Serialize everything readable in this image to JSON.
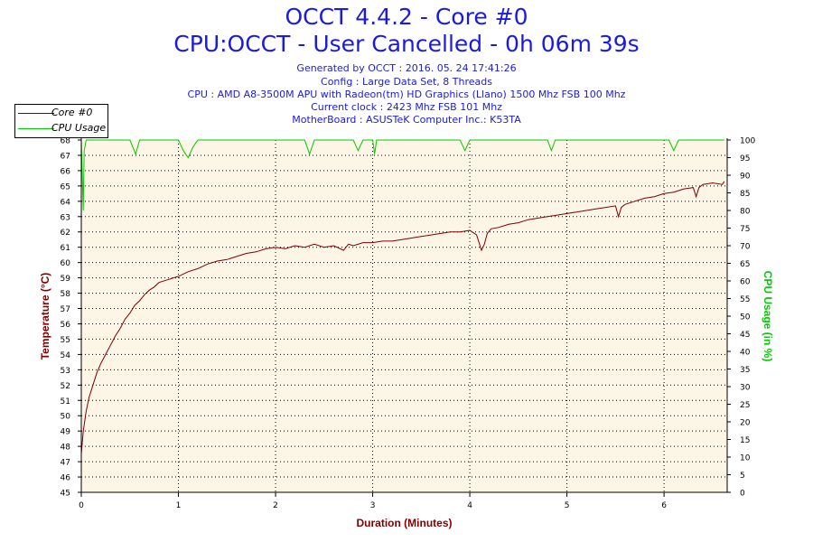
{
  "header": {
    "title": "OCCT 4.4.2 - Core #0",
    "subtitle": "CPU:OCCT - User Cancelled - 0h 06m 39s",
    "info_lines": [
      "Generated by OCCT : 2016. 05. 24 17:41:26",
      "Config : Large Data Set, 8 Threads",
      "CPU : AMD A8-3500M APU with Radeon(tm) HD Graphics (Llano) 1500 Mhz FSB 100 Mhz",
      "Current clock : 2423 Mhz FSB 101 Mhz",
      "MotherBoard : ASUSTeK Computer Inc.: K53TA"
    ]
  },
  "legend": {
    "items": [
      {
        "label": "Core #0",
        "color": "#800000"
      },
      {
        "label": "CPU Usage",
        "color": "#00cc00"
      }
    ]
  },
  "chart_data": {
    "type": "line",
    "xlabel": "Duration (Minutes)",
    "ylabel": "Temperature (°C)",
    "y2label": "CPU Usage (in %)",
    "xlim": [
      0,
      6.65
    ],
    "ylim": [
      45,
      68
    ],
    "y2lim": [
      0,
      100
    ],
    "x_ticks": [
      "0",
      "1",
      "2",
      "3",
      "4",
      "5",
      "6"
    ],
    "y_ticks": [
      "45",
      "46",
      "47",
      "48",
      "49",
      "50",
      "51",
      "52",
      "53",
      "54",
      "55",
      "56",
      "57",
      "58",
      "59",
      "60",
      "61",
      "62",
      "63",
      "64",
      "65",
      "66",
      "67",
      "68"
    ],
    "y2_ticks": [
      "0",
      "5",
      "10",
      "15",
      "20",
      "25",
      "30",
      "35",
      "40",
      "45",
      "50",
      "55",
      "60",
      "65",
      "70",
      "75",
      "80",
      "85",
      "90",
      "95",
      "100"
    ],
    "grid": true,
    "legend_position": "top-left",
    "colors": {
      "axis_left": "#800000",
      "axis_right": "#00cc00",
      "title": "#1a1ae6",
      "plot_bg": "#fdf5e6"
    },
    "series": [
      {
        "name": "Core #0",
        "axis": "left",
        "color": "#800000",
        "x": [
          0,
          0.02,
          0.05,
          0.08,
          0.12,
          0.16,
          0.2,
          0.25,
          0.3,
          0.35,
          0.4,
          0.45,
          0.5,
          0.55,
          0.6,
          0.65,
          0.7,
          0.75,
          0.8,
          0.9,
          1.0,
          1.1,
          1.2,
          1.3,
          1.4,
          1.5,
          1.6,
          1.7,
          1.8,
          1.9,
          2.0,
          2.1,
          2.2,
          2.3,
          2.4,
          2.5,
          2.6,
          2.7,
          2.75,
          2.8,
          2.9,
          3.0,
          3.1,
          3.2,
          3.3,
          3.4,
          3.5,
          3.6,
          3.7,
          3.8,
          3.9,
          4.0,
          4.07,
          4.12,
          4.15,
          4.18,
          4.22,
          4.3,
          4.4,
          4.5,
          4.6,
          4.7,
          4.8,
          4.9,
          5.0,
          5.1,
          5.2,
          5.3,
          5.4,
          5.5,
          5.53,
          5.56,
          5.6,
          5.7,
          5.8,
          5.9,
          6.0,
          6.1,
          6.2,
          6.3,
          6.33,
          6.36,
          6.4,
          6.5,
          6.6,
          6.62
        ],
        "values": [
          47.5,
          49.0,
          50.3,
          51.2,
          52.0,
          52.8,
          53.4,
          54.0,
          54.6,
          55.2,
          55.7,
          56.3,
          56.7,
          57.2,
          57.5,
          57.9,
          58.2,
          58.4,
          58.7,
          58.9,
          59.1,
          59.4,
          59.6,
          59.9,
          60.1,
          60.2,
          60.4,
          60.6,
          60.7,
          60.9,
          61.0,
          60.9,
          61.1,
          61.0,
          61.2,
          61.0,
          61.1,
          60.8,
          61.2,
          61.1,
          61.3,
          61.3,
          61.4,
          61.4,
          61.5,
          61.6,
          61.7,
          61.8,
          61.9,
          62.0,
          62.0,
          62.1,
          61.8,
          60.8,
          61.2,
          61.9,
          62.2,
          62.3,
          62.5,
          62.6,
          62.8,
          62.9,
          63.0,
          63.1,
          63.2,
          63.3,
          63.4,
          63.5,
          63.6,
          63.7,
          63.0,
          63.6,
          63.8,
          64.0,
          64.2,
          64.3,
          64.5,
          64.6,
          64.8,
          64.9,
          64.3,
          64.9,
          65.1,
          65.2,
          65.1,
          65.3
        ]
      },
      {
        "name": "CPU Usage",
        "axis": "right",
        "color": "#00cc00",
        "x": [
          0,
          0.005,
          0.01,
          0.015,
          0.02,
          0.025,
          0.03,
          0.05,
          0.5,
          0.56,
          0.6,
          1.0,
          1.05,
          1.1,
          1.15,
          1.2,
          1.5,
          2.0,
          2.3,
          2.35,
          2.4,
          2.8,
          2.85,
          2.9,
          3.0,
          3.02,
          3.04,
          3.2,
          3.5,
          3.9,
          3.95,
          4.0,
          4.2,
          4.4,
          4.8,
          4.84,
          4.88,
          5.2,
          5.6,
          6.05,
          6.1,
          6.15,
          6.5,
          6.62
        ],
        "values": [
          100,
          95,
          90,
          85,
          80,
          90,
          97,
          100,
          100,
          96,
          100,
          100,
          97,
          95,
          98,
          100,
          100,
          100,
          100,
          96,
          100,
          100,
          97,
          100,
          100,
          96,
          100,
          100,
          100,
          100,
          97,
          100,
          100,
          100,
          100,
          97,
          100,
          100,
          100,
          100,
          97,
          100,
          100,
          100
        ]
      }
    ]
  }
}
